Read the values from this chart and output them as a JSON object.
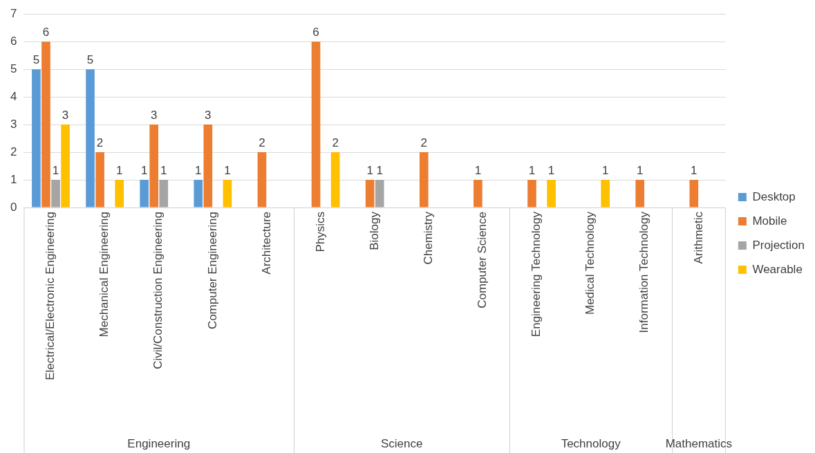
{
  "chart_data": {
    "type": "bar",
    "categories": [
      "Electrical/Electronic Engineering",
      "Mechanical Engineering",
      "Civil/Construction Engineering",
      "Computer Engineering",
      "Architecture",
      "Physics",
      "Biology",
      "Chemistry",
      "Computer Science",
      "Engineering Technology",
      "Medical Technology",
      "Information Technology",
      "Arithmetic"
    ],
    "series": [
      {
        "name": "Desktop",
        "color": "#5b9bd5",
        "values": [
          5,
          5,
          1,
          1,
          null,
          null,
          null,
          null,
          null,
          null,
          null,
          null,
          null
        ]
      },
      {
        "name": "Mobile",
        "color": "#ed7d31",
        "values": [
          6,
          2,
          3,
          3,
          2,
          6,
          1,
          2,
          1,
          1,
          null,
          1,
          1
        ]
      },
      {
        "name": "Projection",
        "color": "#a5a5a5",
        "values": [
          1,
          null,
          1,
          null,
          null,
          null,
          1,
          null,
          null,
          null,
          null,
          null,
          null
        ]
      },
      {
        "name": "Wearable",
        "color": "#ffc000",
        "values": [
          3,
          1,
          null,
          1,
          null,
          2,
          null,
          null,
          null,
          1,
          1,
          null,
          null
        ]
      }
    ],
    "annotations": [
      "Engineering",
      "Science",
      "Technology",
      "Mathematics"
    ],
    "ylim": [
      0,
      7
    ],
    "yticks": [
      0,
      1,
      2,
      3,
      4,
      5,
      6,
      7
    ],
    "grid": "y",
    "legend": "right",
    "data_labels": true
  }
}
